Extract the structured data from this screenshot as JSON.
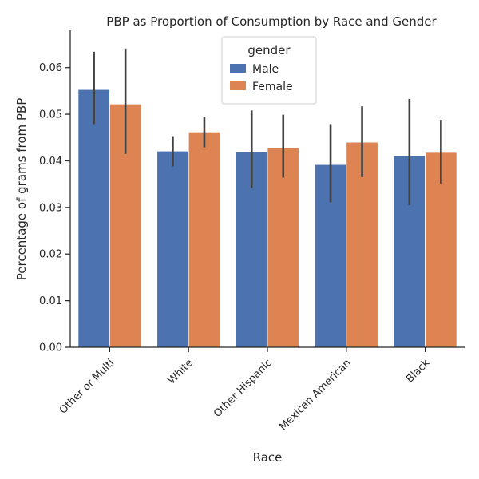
{
  "chart_data": {
    "type": "bar",
    "title": "PBP as Proportion of Consumption by Race and Gender",
    "xlabel": "Race",
    "ylabel": "Percentage of grams from PBP",
    "categories": [
      "Other or Multi",
      "White",
      "Other Hispanic",
      "Mexican American",
      "Black"
    ],
    "ylim": [
      0,
      0.068
    ],
    "yticks": [
      "0.00",
      "0.01",
      "0.02",
      "0.03",
      "0.04",
      "0.05",
      "0.06"
    ],
    "yticks_values": [
      0.0,
      0.01,
      0.02,
      0.03,
      0.04,
      0.05,
      0.06
    ],
    "legend_title": "gender",
    "legend_position": "top-center",
    "grid": false,
    "series": [
      {
        "name": "Male",
        "color": "#4c72b0",
        "values": [
          0.0553,
          0.0421,
          0.0419,
          0.0392,
          0.0411
        ],
        "ci_low": [
          0.0479,
          0.0388,
          0.0342,
          0.0311,
          0.0305
        ],
        "ci_high": [
          0.0634,
          0.0453,
          0.0508,
          0.0479,
          0.0533
        ]
      },
      {
        "name": "Female",
        "color": "#dd8452",
        "values": [
          0.0522,
          0.0462,
          0.0428,
          0.044,
          0.0418
        ],
        "ci_low": [
          0.0415,
          0.0429,
          0.0364,
          0.0365,
          0.0351
        ],
        "ci_high": [
          0.0641,
          0.0494,
          0.0499,
          0.0517,
          0.0488
        ]
      }
    ]
  }
}
